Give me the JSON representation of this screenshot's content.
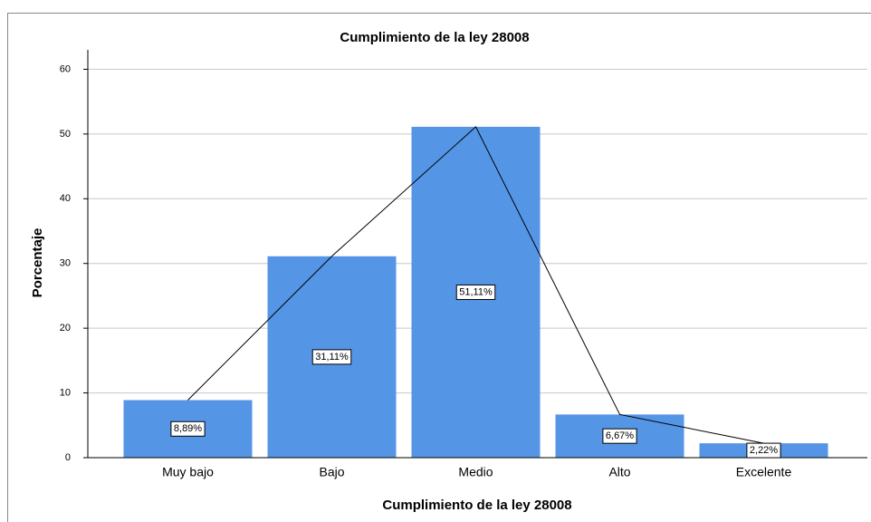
{
  "chart_data": {
    "type": "bar",
    "title": "Cumplimiento de la ley 28008",
    "x_label": "Cumplimiento de la ley 28008",
    "y_label": "Porcentaje",
    "categories": [
      "Muy bajo",
      "Bajo",
      "Medio",
      "Alto",
      "Excelente"
    ],
    "values": [
      8.89,
      31.11,
      51.11,
      6.67,
      2.22
    ],
    "value_labels": [
      "8,89%",
      "31,11%",
      "51,11%",
      "6,67%",
      "2,22%"
    ],
    "color": "#5595e5",
    "line_color": "#000000",
    "ylim": [
      0,
      63
    ],
    "yticks": [
      0,
      10,
      20,
      30,
      40,
      50,
      60
    ],
    "grid": true
  }
}
